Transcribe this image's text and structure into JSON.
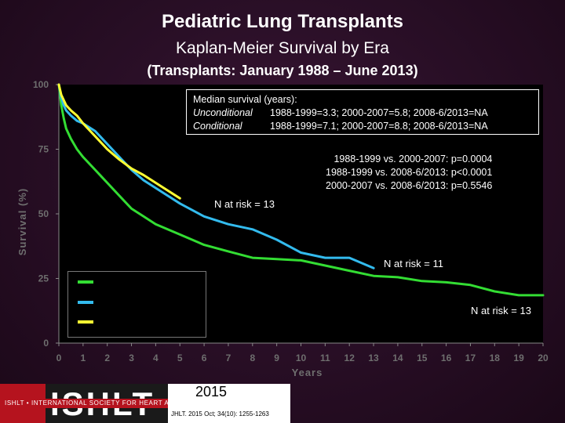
{
  "header": {
    "title": "Pediatric Lung Transplants",
    "subtitle": "Kaplan-Meier Survival by Era",
    "subtitle2": "(Transplants: January 1988 – June 2013)"
  },
  "median_box": {
    "line1": "Median survival (years):",
    "unc_label": "Unconditional",
    "unc_text": "1988-1999=3.3; 2000-2007=5.8; 2008-6/2013=NA",
    "cond_label": "Conditional",
    "cond_text": "1988-1999=7.1; 2000-2007=8.8; 2008-6/2013=NA"
  },
  "pvalues": [
    "1988-1999 vs. 2000-2007:    p=0.0004",
    "1988-1999 vs. 2008-6/2013: p<0.0001",
    "2000-2007 vs. 2008-6/2013: p=0.5546"
  ],
  "annotations": {
    "n_risk_yellow": "N at risk = 13",
    "n_risk_blue": "N at risk = 11",
    "n_risk_green": "N at risk = 13"
  },
  "footer": {
    "logo_text": "ISHLT",
    "strip_text": "ISHLT • INTERNATIONAL SOCIETY FOR HEART AND LUNG TRANSPLANTATION",
    "year": "2015",
    "citation": "JHLT. 2015 Oct; 34(10): 1255-1263"
  },
  "colors": {
    "green": "#33dd33",
    "blue": "#33bbee",
    "yellow": "#ffff33",
    "background": "#2a0f27"
  },
  "chart_data": {
    "type": "line",
    "xlabel": "Years",
    "ylabel": "Survival (%)",
    "xlim": [
      0,
      20
    ],
    "ylim": [
      0,
      100
    ],
    "xticks": [
      0,
      1,
      2,
      3,
      4,
      5,
      6,
      7,
      8,
      9,
      10,
      11,
      12,
      13,
      14,
      15,
      16,
      17,
      18,
      19,
      20
    ],
    "yticks": [
      0,
      25,
      50,
      75,
      100
    ],
    "grid": false,
    "legend": "bottom-left",
    "series": [
      {
        "color_key": "green",
        "x": [
          0,
          0.1,
          0.2,
          0.3,
          0.5,
          0.75,
          1,
          1.5,
          2,
          2.5,
          3,
          3.5,
          4,
          5,
          6,
          7,
          8,
          9,
          10,
          11,
          12,
          13,
          14,
          15,
          16,
          17,
          18,
          19,
          20
        ],
        "y": [
          100,
          92,
          87,
          83,
          79,
          75,
          72,
          67,
          62,
          57,
          52,
          49,
          46,
          42,
          38,
          35.5,
          33,
          32.5,
          32,
          30,
          28,
          26,
          25.5,
          24,
          23.5,
          22.5,
          20,
          18.5,
          18.5
        ]
      },
      {
        "color_key": "blue",
        "x": [
          0,
          0.1,
          0.2,
          0.3,
          0.5,
          0.75,
          1,
          1.5,
          2,
          2.5,
          3,
          3.5,
          4,
          5,
          6,
          7,
          8,
          9,
          10,
          11,
          12,
          13
        ],
        "y": [
          100,
          95,
          92,
          90,
          88,
          86,
          85,
          82,
          77,
          72,
          67,
          63,
          60,
          54,
          49,
          46,
          44,
          40,
          35,
          33,
          33,
          29
        ]
      },
      {
        "color_key": "yellow",
        "x": [
          0,
          0.1,
          0.2,
          0.3,
          0.5,
          0.75,
          1,
          1.5,
          2,
          2.5,
          3,
          3.5,
          4,
          4.5,
          5
        ],
        "y": [
          100,
          96,
          94,
          92,
          90,
          88,
          85,
          80,
          75,
          71,
          67.5,
          65,
          62,
          59,
          56
        ]
      }
    ]
  }
}
